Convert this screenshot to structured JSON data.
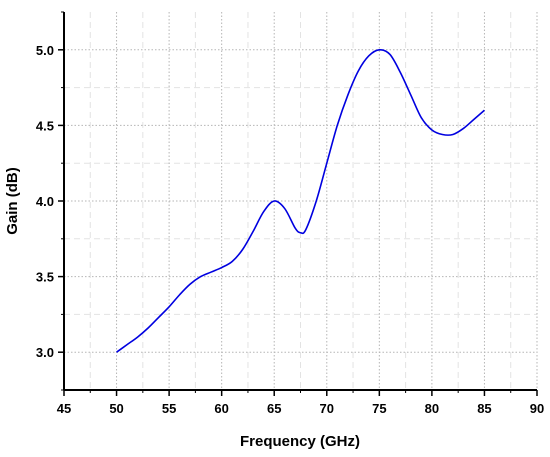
{
  "chart_data": {
    "type": "line",
    "xlabel": "Frequency (GHz)",
    "ylabel": "Gain (dB)",
    "xlim": [
      45,
      90
    ],
    "ylim": [
      2.75,
      5.25
    ],
    "xticks": [
      45,
      50,
      55,
      60,
      65,
      70,
      75,
      80,
      85,
      90
    ],
    "yticks": [
      3.0,
      3.5,
      4.0,
      4.5,
      5.0
    ],
    "ytick_labels": [
      "3.0",
      "3.5",
      "4.0",
      "4.5",
      "5.0"
    ],
    "grid": true,
    "line_color": "#0000e0",
    "series": [
      {
        "x": [
          50,
          51,
          52,
          53,
          54,
          55,
          56,
          57,
          58,
          59,
          60,
          61,
          62,
          63,
          64,
          65,
          66,
          67,
          67.5,
          68,
          69,
          70,
          71,
          72,
          73,
          74,
          75,
          76,
          77,
          78,
          79,
          80,
          81,
          82,
          83,
          84,
          85
        ],
        "y": [
          3.0,
          3.05,
          3.1,
          3.16,
          3.23,
          3.3,
          3.38,
          3.45,
          3.5,
          3.53,
          3.56,
          3.6,
          3.68,
          3.8,
          3.93,
          4.0,
          3.95,
          3.82,
          3.79,
          3.81,
          4.0,
          4.25,
          4.5,
          4.7,
          4.86,
          4.96,
          5.0,
          4.97,
          4.85,
          4.7,
          4.55,
          4.47,
          4.44,
          4.44,
          4.48,
          4.54,
          4.6
        ]
      }
    ]
  }
}
